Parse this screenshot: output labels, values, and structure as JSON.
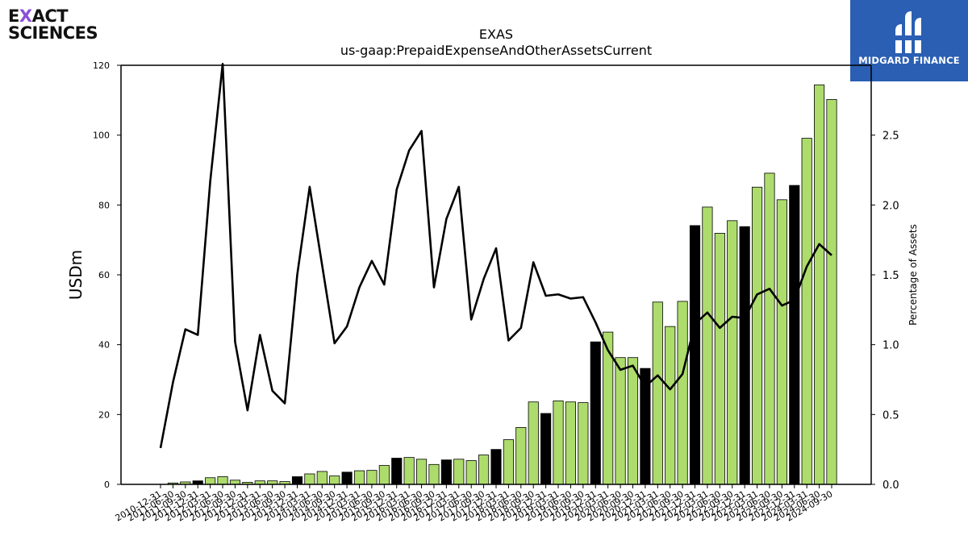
{
  "logo_left": {
    "line1_pre": "E",
    "line1_x": "X",
    "line1_post": "ACT",
    "line2": "SCIENCES"
  },
  "logo_right": {
    "text": "MIDGARD FINANCE"
  },
  "colors": {
    "bar_green": "#addc6c",
    "bar_black": "#000000",
    "line": "#000000",
    "logo_bg": "#2a5fb3"
  },
  "chart_data": {
    "type": "bar",
    "title": "EXAS",
    "subtitle": "us-gaap:PrepaidExpenseAndOtherAssetsCurrent",
    "ylabel": "USDm",
    "y2label": "Percentage of Assets",
    "ylim": [
      0,
      120
    ],
    "y2lim": [
      0,
      3.0
    ],
    "yticks": [
      0,
      20,
      40,
      60,
      80,
      100,
      120
    ],
    "y2ticks": [
      "0.0",
      "0.5",
      "1.0",
      "1.5",
      "2.0",
      "2.5"
    ],
    "categories": [
      "2010-12-31",
      "2011-06-30",
      "2011-09-30",
      "2011-12-31",
      "2012-03-31",
      "2012-06-30",
      "2012-09-30",
      "2012-12-31",
      "2013-03-31",
      "2013-06-30",
      "2013-09-30",
      "2013-12-31",
      "2014-03-31",
      "2014-06-30",
      "2014-09-30",
      "2014-12-31",
      "2015-03-31",
      "2015-06-30",
      "2015-09-30",
      "2015-12-31",
      "2016-03-31",
      "2016-06-30",
      "2016-09-30",
      "2016-12-31",
      "2017-03-31",
      "2017-06-30",
      "2017-09-30",
      "2017-12-31",
      "2018-03-31",
      "2018-06-30",
      "2018-09-30",
      "2018-12-31",
      "2019-03-31",
      "2019-06-30",
      "2019-09-30",
      "2019-12-31",
      "2020-03-31",
      "2020-06-30",
      "2020-09-30",
      "2020-12-31",
      "2021-03-31",
      "2021-06-30",
      "2021-09-30",
      "2021-12-31",
      "2022-03-31",
      "2022-06-30",
      "2022-09-30",
      "2022-12-31",
      "2023-03-31",
      "2023-06-30",
      "2023-09-30",
      "2023-12-31",
      "2024-03-31",
      "2024-06-30",
      "2024-09-30"
    ],
    "xticks_shown": [
      "2010-12-31",
      "2011-06-30",
      "2011-09-30",
      "2011-12-31",
      "2012-03-31",
      "2012-06-30",
      "2012-09-30",
      "2012-12-31",
      "2013-03-31",
      "2013-06-30",
      "2013-09-30",
      "2013-12-31",
      "2014-03-31",
      "2014-06-30",
      "2014-09-30",
      "2014-12-31",
      "2015-03-31",
      "2015-06-30",
      "2015-09-30",
      "2015-12-31",
      "2016-03-31",
      "2016-06-30",
      "2016-09-30",
      "2016-12-31",
      "2017-03-31",
      "2017-06-30",
      "2017-09-30",
      "2017-12-31",
      "2018-03-31",
      "2018-06-30",
      "2018-09-30",
      "2018-12-31",
      "2019-03-31",
      "2019-06-30",
      "2019-09-30",
      "2019-12-31",
      "2020-03-31",
      "2020-06-30",
      "2020-09-30",
      "2020-12-31",
      "2021-03-31",
      "2021-06-30",
      "2021-09-30",
      "2021-12-31",
      "2022-03-31",
      "2022-06-30",
      "2022-09-30",
      "2022-12-31",
      "2023-03-31",
      "2023-06-30",
      "2023-09-30",
      "2023-12-31",
      "2024-03-31",
      "2024-06-30",
      "2024-09-30"
    ],
    "bars": [
      0,
      0.4,
      0.7,
      1.0,
      1.9,
      2.2,
      1.2,
      0.6,
      1.0,
      1.0,
      0.8,
      2.2,
      3.0,
      3.7,
      2.4,
      3.5,
      3.9,
      4.0,
      5.4,
      7.5,
      7.7,
      7.2,
      5.7,
      7.0,
      7.2,
      6.8,
      8.4,
      10.0,
      12.8,
      16.3,
      23.6,
      20.3,
      23.9,
      23.6,
      23.4,
      40.8,
      43.6,
      36.3,
      36.3,
      33.2,
      52.2,
      45.2,
      52.4,
      74.1,
      79.4,
      71.9,
      75.5,
      73.8,
      85.1,
      89.1,
      81.5,
      85.6,
      99.1,
      114.4,
      110.2
    ],
    "bar_colors": [
      "g",
      "g",
      "g",
      "k",
      "g",
      "g",
      "g",
      "g",
      "g",
      "g",
      "g",
      "k",
      "g",
      "g",
      "g",
      "k",
      "g",
      "g",
      "g",
      "k",
      "g",
      "g",
      "g",
      "k",
      "g",
      "g",
      "g",
      "k",
      "g",
      "g",
      "g",
      "k",
      "g",
      "g",
      "g",
      "k",
      "g",
      "g",
      "g",
      "k",
      "g",
      "g",
      "g",
      "k",
      "g",
      "g",
      "g",
      "k",
      "g",
      "g",
      "g",
      "k",
      "g",
      "g",
      "g"
    ],
    "pct_line": [
      0.26,
      0.73,
      1.11,
      1.07,
      2.17,
      3.01,
      1.02,
      0.53,
      1.07,
      0.67,
      0.58,
      1.5,
      2.13,
      1.57,
      1.01,
      1.13,
      1.41,
      1.6,
      1.43,
      2.11,
      2.39,
      2.53,
      1.41,
      1.9,
      2.13,
      1.18,
      1.47,
      1.69,
      1.03,
      1.12,
      1.59,
      1.35,
      1.36,
      1.33,
      1.34,
      1.16,
      0.96,
      0.82,
      0.85,
      0.7,
      0.78,
      0.68,
      0.79,
      1.15,
      1.23,
      1.12,
      1.2,
      1.19,
      1.36,
      1.4,
      1.28,
      1.32,
      1.56,
      1.72,
      1.64
    ]
  }
}
